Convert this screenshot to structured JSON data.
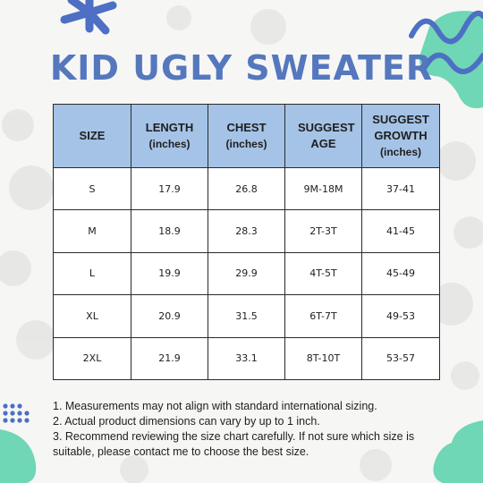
{
  "title": "KID UGLY SWEATER",
  "table": {
    "headers": [
      {
        "label": "SIZE",
        "unit": ""
      },
      {
        "label": "LENGTH",
        "unit": "(inches)"
      },
      {
        "label": "CHEST",
        "unit": "(inches)"
      },
      {
        "label": "SUGGEST AGE",
        "unit": ""
      },
      {
        "label": "SUGGEST GROWTH",
        "unit": "(inches)"
      }
    ],
    "rows": [
      [
        "S",
        "17.9",
        "26.8",
        "9M-18M",
        "37-41"
      ],
      [
        "M",
        "18.9",
        "28.3",
        "2T-3T",
        "41-45"
      ],
      [
        "L",
        "19.9",
        "29.9",
        "4T-5T",
        "45-49"
      ],
      [
        "XL",
        "20.9",
        "31.5",
        "6T-7T",
        "49-53"
      ],
      [
        "2XL",
        "21.9",
        "33.1",
        "8T-10T",
        "53-57"
      ]
    ]
  },
  "notes": [
    "1. Measurements may not align with standard international sizing.",
    "2. Actual product dimensions can vary by up to 1 inch.",
    "3. Recommend reviewing the size chart carefully. If not sure which size is suitable, please contact me to choose the best size."
  ],
  "colors": {
    "title": "#5577be",
    "header_fill": "#a5c3e6",
    "accent_blob": "#6fd6b6",
    "accent_blue": "#4d6fc4"
  }
}
